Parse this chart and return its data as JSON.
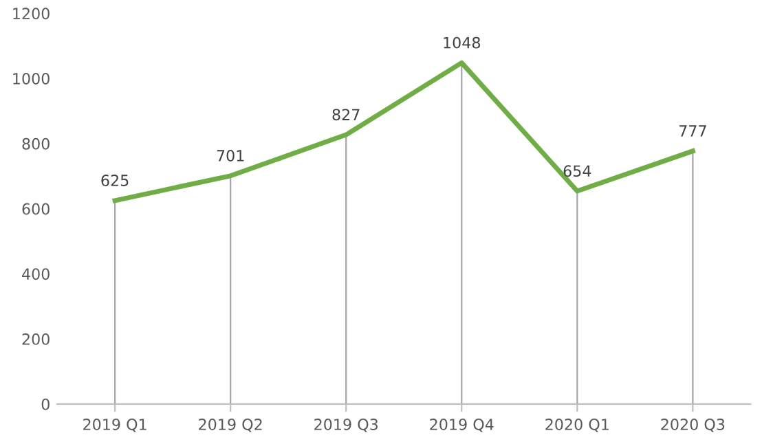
{
  "chart_data": {
    "type": "line",
    "categories": [
      "2019 Q1",
      "2019 Q2",
      "2019 Q3",
      "2019 Q4",
      "2020 Q1",
      "2020 Q3"
    ],
    "series": [
      {
        "color": "#70ad47",
        "values": [
          625,
          701,
          827,
          1048,
          654,
          777
        ]
      }
    ],
    "ylim": [
      0,
      1200
    ],
    "yticks": [
      0,
      200,
      400,
      600,
      800,
      1000,
      1200
    ],
    "data_labels": true,
    "grid": "x",
    "legend": false,
    "marker": "none",
    "line_style": "solid"
  }
}
